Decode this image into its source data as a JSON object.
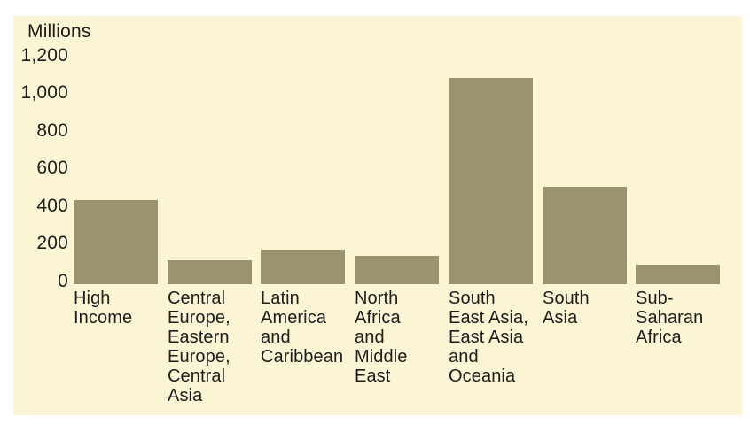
{
  "page": {
    "background": "#FFFFFF"
  },
  "chart_data": {
    "type": "bar",
    "ylabel": "Millions",
    "categories": [
      "High Income",
      "Central Europe, Eastern Europe, Central Asia",
      "Latin America and Caribbean",
      "North Africa and Middle East",
      "South East Asia, East Asia and Oceania",
      "South Asia",
      "Sub-Saharan Africa"
    ],
    "category_label_lines": [
      [
        "High",
        "Income"
      ],
      [
        "Central",
        "Europe,",
        "Eastern",
        "Europe,",
        "Central",
        "Asia"
      ],
      [
        "Latin",
        "America",
        "and",
        "Caribbean"
      ],
      [
        "North",
        "Africa",
        "and",
        "Middle",
        "East"
      ],
      [
        "South",
        "East Asia,",
        "East Asia",
        "and",
        "Oceania"
      ],
      [
        "South",
        "Asia"
      ],
      [
        "Sub-",
        "Saharan",
        "Africa"
      ]
    ],
    "values": [
      440,
      125,
      180,
      150,
      1080,
      510,
      100
    ],
    "ylim": [
      0,
      1200
    ],
    "yticks": [
      1200,
      1000,
      800,
      600,
      400,
      200,
      0
    ],
    "ytick_labels": [
      "1,200",
      "1,000",
      "800",
      "600",
      "400",
      "200",
      "0"
    ],
    "grid": false,
    "legend": "none",
    "colors": {
      "bar": "#9B9270",
      "panel_background": "#FBF4D5",
      "text": "#1D1D1B",
      "page_background": "#FFFFFF"
    }
  }
}
